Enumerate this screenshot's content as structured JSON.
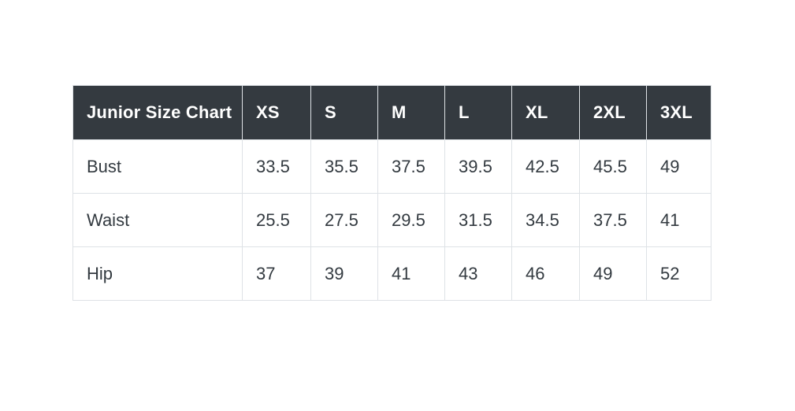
{
  "page": {
    "background": "#ffffff"
  },
  "chart_data": {
    "type": "table",
    "title": "Junior Size Chart",
    "columns": [
      "Junior Size Chart",
      "XS",
      "S",
      "M",
      "L",
      "XL",
      "2XL",
      "3XL"
    ],
    "rows": [
      {
        "label": "Bust",
        "values": [
          33.5,
          35.5,
          37.5,
          39.5,
          42.5,
          45.5,
          49
        ]
      },
      {
        "label": "Waist",
        "values": [
          25.5,
          27.5,
          29.5,
          31.5,
          34.5,
          37.5,
          41
        ]
      },
      {
        "label": "Hip",
        "values": [
          37,
          39,
          41,
          43,
          46,
          49,
          52
        ]
      }
    ],
    "layout_hints": {
      "header_position": "top",
      "grid": true,
      "units_shown": false
    },
    "colors": {
      "header_bg": "#343a40",
      "header_text": "#ffffff",
      "body_text": "#333a40",
      "border": "#dee2e6",
      "page_bg": "#ffffff"
    }
  }
}
